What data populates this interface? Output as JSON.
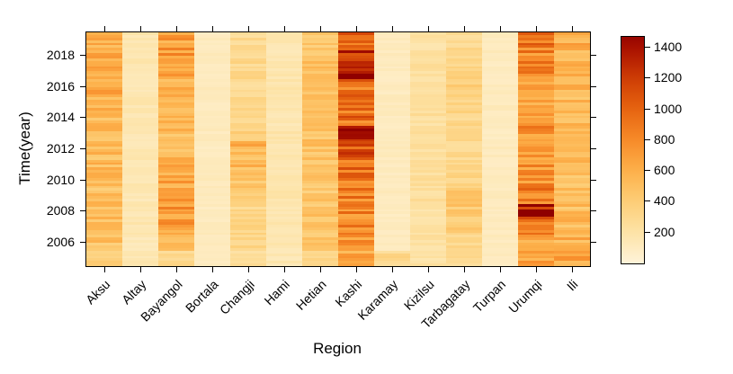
{
  "chart_data": {
    "type": "heatmap",
    "title": "",
    "xlabel": "Region",
    "ylabel": "Time(year)",
    "categories": [
      "Aksu",
      "Altay",
      "Bayangol",
      "Bortala",
      "Changji",
      "Hami",
      "Hetian",
      "Kashi",
      "Karamay",
      "Kizilsu",
      "Tarbagatay",
      "Turpan",
      "Urumqi",
      "Ili"
    ],
    "years": [
      2005,
      2006,
      2007,
      2008,
      2009,
      2010,
      2011,
      2012,
      2013,
      2014,
      2015,
      2016,
      2017,
      2018,
      2019
    ],
    "y_tick_labels": [
      2006,
      2008,
      2010,
      2012,
      2014,
      2016,
      2018
    ],
    "series": [
      {
        "name": "Aksu",
        "values": [
          420,
          470,
          500,
          490,
          480,
          500,
          510,
          500,
          520,
          500,
          540,
          590,
          620,
          600,
          560
        ]
      },
      {
        "name": "Altay",
        "values": [
          150,
          140,
          160,
          150,
          140,
          150,
          160,
          150,
          140,
          150,
          160,
          150,
          160,
          170,
          160
        ]
      },
      {
        "name": "Bayangol",
        "values": [
          280,
          560,
          680,
          700,
          660,
          620,
          560,
          520,
          500,
          540,
          560,
          600,
          650,
          700,
          660
        ]
      },
      {
        "name": "Bortala",
        "values": [
          100,
          100,
          110,
          100,
          100,
          110,
          100,
          100,
          110,
          100,
          100,
          110,
          100,
          110,
          100
        ]
      },
      {
        "name": "Changji",
        "values": [
          260,
          300,
          310,
          320,
          350,
          420,
          520,
          560,
          340,
          300,
          300,
          280,
          300,
          310,
          280
        ]
      },
      {
        "name": "Hami",
        "values": [
          150,
          160,
          170,
          160,
          170,
          180,
          170,
          160,
          170,
          160,
          170,
          180,
          170,
          160,
          150
        ]
      },
      {
        "name": "Hetian",
        "values": [
          300,
          420,
          450,
          460,
          440,
          450,
          470,
          460,
          480,
          450,
          460,
          470,
          480,
          470,
          440
        ]
      },
      {
        "name": "Kashi",
        "values": [
          620,
          700,
          760,
          800,
          820,
          860,
          900,
          1000,
          1300,
          920,
          860,
          900,
          1250,
          1150,
          950
        ]
      },
      {
        "name": "Karamay",
        "values": [
          300,
          110,
          100,
          100,
          110,
          100,
          100,
          110,
          100,
          100,
          110,
          100,
          100,
          110,
          100
        ]
      },
      {
        "name": "Kizilsu",
        "values": [
          200,
          210,
          220,
          210,
          230,
          240,
          230,
          220,
          240,
          230,
          220,
          230,
          220,
          210,
          200
        ]
      },
      {
        "name": "Tarbagatay",
        "values": [
          260,
          300,
          380,
          420,
          400,
          340,
          300,
          290,
          300,
          310,
          330,
          360,
          340,
          300,
          280
        ]
      },
      {
        "name": "Turpan",
        "values": [
          100,
          110,
          100,
          100,
          110,
          100,
          100,
          110,
          100,
          100,
          110,
          100,
          100,
          110,
          100
        ]
      },
      {
        "name": "Urumqi",
        "values": [
          620,
          660,
          800,
          1380,
          820,
          760,
          720,
          710,
          750,
          720,
          680,
          700,
          760,
          800,
          860
        ]
      },
      {
        "name": "Ili",
        "values": [
          640,
          560,
          520,
          500,
          490,
          500,
          510,
          500,
          490,
          500,
          510,
          520,
          540,
          560,
          580
        ]
      }
    ],
    "value_range": [
      0,
      1470
    ],
    "colorbar_ticks": [
      200,
      400,
      600,
      800,
      1000,
      1200,
      1400
    ],
    "colormap_stops": [
      [
        0,
        "#FEF3D9"
      ],
      [
        200,
        "#FDE3A7"
      ],
      [
        400,
        "#FDCE77"
      ],
      [
        600,
        "#FDB04A"
      ],
      [
        800,
        "#F78B29"
      ],
      [
        1000,
        "#E66410"
      ],
      [
        1200,
        "#CE3D05"
      ],
      [
        1400,
        "#A81000"
      ],
      [
        1500,
        "#8F0000"
      ]
    ],
    "legend_position": "right",
    "grid": false
  }
}
